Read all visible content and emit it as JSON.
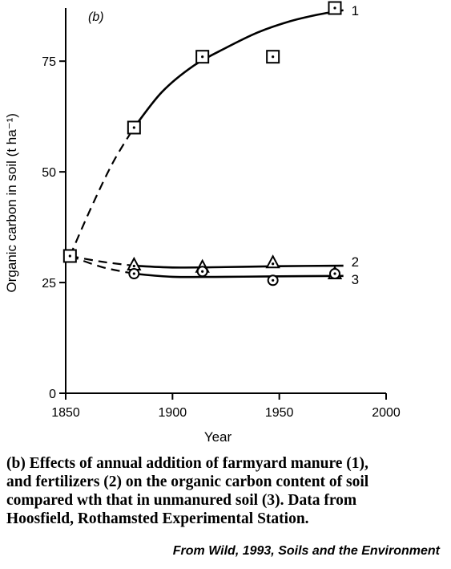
{
  "chart_data": {
    "type": "line",
    "panel_label": "(b)",
    "xlabel": "Year",
    "ylabel": "Organic carbon in soil (t ha⁻¹)",
    "xlim": [
      1850,
      2000
    ],
    "ylim": [
      0,
      87
    ],
    "x_ticks": [
      "1850",
      "1900",
      "1950",
      "2000"
    ],
    "y_ticks": [
      "0",
      "25",
      "50",
      "75"
    ],
    "grid": false,
    "series": [
      {
        "name": "1",
        "marker": "square-dot",
        "points": [
          [
            1852,
            31
          ],
          [
            1882,
            60
          ],
          [
            1914,
            76
          ],
          [
            1947,
            76
          ],
          [
            1976,
            87
          ]
        ],
        "curve_dashed": [
          [
            1852,
            31
          ],
          [
            1862,
            42
          ],
          [
            1872,
            52
          ],
          [
            1882,
            60
          ]
        ],
        "curve_solid": [
          [
            1882,
            60
          ],
          [
            1895,
            68
          ],
          [
            1910,
            74
          ],
          [
            1925,
            78
          ],
          [
            1940,
            81.5
          ],
          [
            1955,
            84
          ],
          [
            1968,
            85.5
          ],
          [
            1980,
            86.5
          ]
        ]
      },
      {
        "name": "2",
        "marker": "triangle-dot",
        "points": [
          [
            1852,
            31
          ],
          [
            1882,
            29
          ],
          [
            1914,
            28.5
          ],
          [
            1947,
            29.5
          ],
          [
            1976,
            27
          ]
        ],
        "curve_dashed": [
          [
            1852,
            31
          ],
          [
            1867,
            29.7
          ],
          [
            1882,
            28.8
          ]
        ],
        "curve_solid": [
          [
            1882,
            28.8
          ],
          [
            1900,
            28.4
          ],
          [
            1925,
            28.5
          ],
          [
            1950,
            28.7
          ],
          [
            1980,
            28.8
          ]
        ]
      },
      {
        "name": "3",
        "marker": "circle-dot",
        "points": [
          [
            1852,
            31
          ],
          [
            1882,
            27
          ],
          [
            1914,
            27.5
          ],
          [
            1947,
            25.5
          ],
          [
            1976,
            27
          ]
        ],
        "curve_dashed": [
          [
            1852,
            31
          ],
          [
            1867,
            28.5
          ],
          [
            1882,
            27
          ]
        ],
        "curve_solid": [
          [
            1882,
            27
          ],
          [
            1900,
            26.3
          ],
          [
            1925,
            26.3
          ],
          [
            1950,
            26.4
          ],
          [
            1980,
            26.5
          ]
        ]
      }
    ]
  },
  "caption": {
    "lines": [
      "(b) Effects of annual addition of farmyard manure (1),",
      "and fertilizers (2) on the organic carbon content of soil",
      "compared wth that in unmanured soil (3).  Data from",
      "Hoosfield, Rothamsted Experimental Station."
    ],
    "source": "From Wild, 1993, Soils and the Environment"
  }
}
